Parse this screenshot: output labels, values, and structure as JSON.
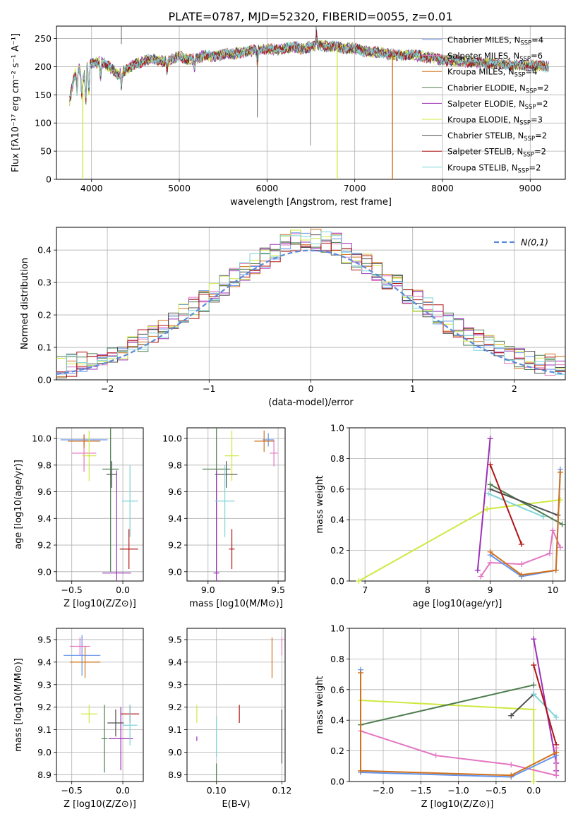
{
  "figure": {
    "title": "PLATE=0787, MJD=52320, FIBERID=0055, z=0.01"
  },
  "colors": {
    "Chabrier MILES": "#6495ed",
    "Salpeter MILES": "#e377c2",
    "Kroupa MILES": "#d0711b",
    "Chabrier ELODIE": "#4e7d4e",
    "Salpeter ELODIE": "#9b30b8",
    "Kroupa ELODIE": "#cfe840",
    "Chabrier STELIB": "#505050",
    "Salpeter STELIB": "#b01414",
    "Kroupa STELIB": "#7fd3d8"
  },
  "chart_data": [
    {
      "id": "spectrum",
      "type": "line",
      "title": "PLATE=0787, MJD=52320, FIBERID=0055, z=0.01",
      "xlabel": "wavelength [Angstrom, rest frame]",
      "ylabel": "Flux [f_λ 10^-17 erg cm^-2 s^-1 A^-1]",
      "xlim": [
        3600,
        9400
      ],
      "ylim": [
        0,
        272
      ],
      "xticks": [
        4000,
        5000,
        6000,
        7000,
        8000,
        9000
      ],
      "yticks": [
        0,
        50,
        100,
        150,
        200,
        250
      ],
      "legend_position": "top-right",
      "legend": [
        {
          "name": "Chabrier MILES",
          "nssp": "4"
        },
        {
          "name": "Salpeter MILES",
          "nssp": "6"
        },
        {
          "name": "Kroupa MILES",
          "nssp": "4"
        },
        {
          "name": "Chabrier ELODIE",
          "nssp": "2"
        },
        {
          "name": "Salpeter ELODIE",
          "nssp": "2"
        },
        {
          "name": "Kroupa ELODIE",
          "nssp": "3"
        },
        {
          "name": "Chabrier STELIB",
          "nssp": "2"
        },
        {
          "name": "Salpeter STELIB",
          "nssp": "2"
        },
        {
          "name": "Kroupa STELIB",
          "nssp": "2"
        }
      ],
      "continuum": [
        [
          3750,
          140
        ],
        [
          3800,
          180
        ],
        [
          3850,
          200
        ],
        [
          3900,
          175
        ],
        [
          3950,
          200
        ],
        [
          4000,
          205
        ],
        [
          4100,
          210
        ],
        [
          4200,
          200
        ],
        [
          4300,
          185
        ],
        [
          4400,
          195
        ],
        [
          4500,
          205
        ],
        [
          4600,
          210
        ],
        [
          4700,
          213
        ],
        [
          4800,
          210
        ],
        [
          4900,
          212
        ],
        [
          5000,
          220
        ],
        [
          5100,
          212
        ],
        [
          5200,
          215
        ],
        [
          5300,
          220
        ],
        [
          5400,
          218
        ],
        [
          5500,
          222
        ],
        [
          5600,
          222
        ],
        [
          5700,
          225
        ],
        [
          5800,
          228
        ],
        [
          5900,
          230
        ],
        [
          6000,
          232
        ],
        [
          6100,
          230
        ],
        [
          6200,
          232
        ],
        [
          6300,
          235
        ],
        [
          6400,
          232
        ],
        [
          6500,
          236
        ],
        [
          6600,
          238
        ],
        [
          6700,
          237
        ],
        [
          6800,
          235
        ],
        [
          6900,
          233
        ],
        [
          7000,
          232
        ],
        [
          7100,
          228
        ],
        [
          7200,
          226
        ],
        [
          7300,
          225
        ],
        [
          7400,
          222
        ],
        [
          7500,
          220
        ],
        [
          7600,
          222
        ],
        [
          7700,
          220
        ],
        [
          7800,
          217
        ],
        [
          7900,
          215
        ],
        [
          8000,
          212
        ],
        [
          8200,
          210
        ],
        [
          8400,
          207
        ],
        [
          8600,
          205
        ],
        [
          8800,
          203
        ],
        [
          9000,
          202
        ],
        [
          9200,
          200
        ]
      ],
      "drops": [
        {
          "series": "Kroupa ELODIE",
          "x": 3900
        },
        {
          "series": "Kroupa ELODIE",
          "x": 6800
        },
        {
          "series": "Kroupa MILES",
          "x": 7430
        }
      ]
    },
    {
      "id": "residuals",
      "type": "step",
      "xlabel": "(data-model)/error",
      "ylabel": "Normed distribution",
      "xlim": [
        -2.5,
        2.5
      ],
      "ylim": [
        0,
        0.47
      ],
      "xticks": [
        -2,
        -1,
        0,
        1,
        2
      ],
      "yticks": [
        0.0,
        0.1,
        0.2,
        0.3,
        0.4
      ],
      "bin_width": 0.1,
      "gaussian": {
        "name": "N(0,1)",
        "color": "#5a8ad8"
      },
      "legend_position": "top-right"
    },
    {
      "id": "age_vs_Z",
      "type": "errorbar",
      "xlabel": "Z [log10(Z/Z⊙)]",
      "ylabel": "age [log10(age/yr)]",
      "xlim": [
        -0.65,
        0.2
      ],
      "ylim": [
        8.93,
        10.08
      ],
      "xticks": [
        -0.5,
        0.0
      ],
      "xticklabels": [
        "−0.5",
        "0.0"
      ],
      "yticks": [
        9.0,
        9.2,
        9.4,
        9.6,
        9.8,
        10.0
      ],
      "points": [
        {
          "series": "Chabrier MILES",
          "x": -0.38,
          "y": 9.99,
          "xerr": 0.23,
          "yerr": 0.04
        },
        {
          "series": "Salpeter MILES",
          "x": -0.38,
          "y": 9.89,
          "xerr": 0.12,
          "yerr": 0.14
        },
        {
          "series": "Kroupa MILES",
          "x": -0.38,
          "y": 9.98,
          "xerr": 0.16,
          "yerr": 0.05
        },
        {
          "series": "Chabrier ELODIE",
          "x": -0.12,
          "y": 9.77,
          "xerr": 0.08,
          "yerr": 0.77
        },
        {
          "series": "Salpeter ELODIE",
          "x": -0.06,
          "y": 8.99,
          "xerr": 0.14,
          "yerr": 0.77
        },
        {
          "series": "Kroupa ELODIE",
          "x": -0.33,
          "y": 9.87,
          "xerr": 0.07,
          "yerr": 0.19
        },
        {
          "series": "Chabrier STELIB",
          "x": -0.11,
          "y": 9.73,
          "xerr": 0.05,
          "yerr": 0.1
        },
        {
          "series": "Salpeter STELIB",
          "x": 0.06,
          "y": 9.17,
          "xerr": 0.09,
          "yerr": 0.15
        },
        {
          "series": "Kroupa STELIB",
          "x": 0.07,
          "y": 9.53,
          "xerr": 0.08,
          "yerr": 0.27
        }
      ]
    },
    {
      "id": "age_vs_mass",
      "type": "errorbar",
      "xlabel": "mass [log10(M/M⊙)]",
      "xlim": [
        8.85,
        9.55
      ],
      "ylim": [
        8.93,
        10.08
      ],
      "xticks": [
        9.0,
        9.5
      ],
      "xticklabels": [
        "9.0",
        "9.5"
      ],
      "yticks": [
        9.0,
        9.2,
        9.4,
        9.6,
        9.8,
        10.0
      ],
      "points": [
        {
          "series": "Chabrier MILES",
          "x": 9.43,
          "y": 9.99,
          "xerr": 0.04,
          "yerr": 0.05
        },
        {
          "series": "Salpeter MILES",
          "x": 9.47,
          "y": 9.89,
          "xerr": 0.03,
          "yerr": 0.1
        },
        {
          "series": "Kroupa MILES",
          "x": 9.4,
          "y": 9.98,
          "xerr": 0.07,
          "yerr": 0.08
        },
        {
          "series": "Chabrier ELODIE",
          "x": 9.06,
          "y": 9.77,
          "xerr": 0.1,
          "yerr": 0.77
        },
        {
          "series": "Salpeter ELODIE",
          "x": 9.06,
          "y": 8.99,
          "xerr": 0.02,
          "yerr": 0.77
        },
        {
          "series": "Kroupa ELODIE",
          "x": 9.17,
          "y": 9.87,
          "xerr": 0.05,
          "yerr": 0.19
        },
        {
          "series": "Chabrier STELIB",
          "x": 9.13,
          "y": 9.73,
          "xerr": 0.08,
          "yerr": 0.1
        },
        {
          "series": "Salpeter STELIB",
          "x": 9.17,
          "y": 9.17,
          "xerr": 0.02,
          "yerr": 0.15
        },
        {
          "series": "Kroupa STELIB",
          "x": 9.12,
          "y": 9.53,
          "xerr": 0.07,
          "yerr": 0.27
        }
      ]
    },
    {
      "id": "weight_vs_age",
      "type": "line",
      "xlabel": "age [log10(age/yr)]",
      "ylabel": "mass weight",
      "xlim": [
        6.75,
        10.2
      ],
      "ylim": [
        0,
        1.0
      ],
      "xticks": [
        7,
        8,
        9,
        10
      ],
      "yticks": [
        0.0,
        0.2,
        0.4,
        0.6,
        0.8,
        1.0
      ],
      "series": [
        {
          "name": "Kroupa ELODIE",
          "points": [
            [
              6.9,
              0.0
            ],
            [
              8.95,
              0.47
            ],
            [
              10.12,
              0.53
            ]
          ]
        },
        {
          "name": "Kroupa STELIB",
          "points": [
            [
              8.97,
              0.57
            ],
            [
              9.85,
              0.42
            ]
          ]
        },
        {
          "name": "Chabrier ELODIE",
          "points": [
            [
              9.0,
              0.63
            ],
            [
              10.15,
              0.37
            ]
          ]
        },
        {
          "name": "Chabrier STELIB",
          "points": [
            [
              9.0,
              0.6
            ],
            [
              10.08,
              0.43
            ]
          ]
        },
        {
          "name": "Salpeter STELIB",
          "points": [
            [
              9.0,
              0.76
            ],
            [
              9.5,
              0.24
            ]
          ]
        },
        {
          "name": "Salpeter ELODIE",
          "points": [
            [
              8.8,
              0.07
            ],
            [
              9.0,
              0.93
            ]
          ]
        },
        {
          "name": "Salpeter MILES",
          "points": [
            [
              8.85,
              0.03
            ],
            [
              9.0,
              0.12
            ],
            [
              9.5,
              0.11
            ],
            [
              9.95,
              0.18
            ],
            [
              10.0,
              0.33
            ],
            [
              10.12,
              0.22
            ]
          ]
        },
        {
          "name": "Chabrier MILES",
          "points": [
            [
              9.0,
              0.17
            ],
            [
              9.5,
              0.03
            ],
            [
              10.05,
              0.07
            ],
            [
              10.12,
              0.73
            ]
          ]
        },
        {
          "name": "Kroupa MILES",
          "points": [
            [
              9.0,
              0.19
            ],
            [
              9.5,
              0.04
            ],
            [
              10.05,
              0.07
            ],
            [
              10.12,
              0.71
            ]
          ]
        }
      ]
    },
    {
      "id": "mass_vs_Z",
      "type": "errorbar",
      "xlabel": "Z [log10(Z/Z⊙)]",
      "ylabel": "mass [log10(M/M⊙)]",
      "xlim": [
        -0.65,
        0.2
      ],
      "ylim": [
        8.87,
        9.55
      ],
      "xticks": [
        -0.5,
        0.0
      ],
      "xticklabels": [
        "−0.5",
        "0.0"
      ],
      "yticks": [
        8.9,
        9.0,
        9.1,
        9.2,
        9.3,
        9.4,
        9.5
      ],
      "points": [
        {
          "series": "Chabrier MILES",
          "x": -0.4,
          "y": 9.43,
          "xerr": 0.18,
          "yerr": 0.09
        },
        {
          "series": "Salpeter MILES",
          "x": -0.42,
          "y": 9.47,
          "xerr": 0.1,
          "yerr": 0.04
        },
        {
          "series": "Kroupa MILES",
          "x": -0.37,
          "y": 9.4,
          "xerr": 0.15,
          "yerr": 0.07
        },
        {
          "series": "Chabrier ELODIE",
          "x": -0.18,
          "y": 9.06,
          "xerr": 0.03,
          "yerr": 0.15
        },
        {
          "series": "Salpeter ELODIE",
          "x": -0.02,
          "y": 9.06,
          "xerr": 0.12,
          "yerr": 0.14
        },
        {
          "series": "Kroupa ELODIE",
          "x": -0.33,
          "y": 9.17,
          "xerr": 0.08,
          "yerr": 0.04
        },
        {
          "series": "Chabrier STELIB",
          "x": -0.07,
          "y": 9.13,
          "xerr": 0.08,
          "yerr": 0.06
        },
        {
          "series": "Salpeter STELIB",
          "x": 0.07,
          "y": 9.17,
          "xerr": 0.09,
          "yerr": 0.04
        },
        {
          "series": "Kroupa STELIB",
          "x": 0.07,
          "y": 9.12,
          "xerr": 0.07,
          "yerr": 0.09
        }
      ]
    },
    {
      "id": "mass_vs_ebv",
      "type": "errorbar",
      "xlabel": "E(B-V)",
      "xlim": [
        0.091,
        0.121
      ],
      "ylim": [
        8.87,
        9.55
      ],
      "xticks": [
        0.1,
        0.12
      ],
      "xticklabels": [
        "0.10",
        "0.12"
      ],
      "yticks": [
        8.9,
        9.0,
        9.1,
        9.2,
        9.3,
        9.4,
        9.5
      ],
      "points": [
        {
          "series": "Salpeter ELODIE",
          "x": 0.094,
          "y": 9.06,
          "xerr": 0,
          "yerr": 0.01
        },
        {
          "series": "Kroupa ELODIE",
          "x": 0.094,
          "y": 9.17,
          "xerr": 0,
          "yerr": 0.04
        },
        {
          "series": "Chabrier ELODIE",
          "x": 0.1,
          "y": 8.9,
          "xerr": 0,
          "yerr": 0.05
        },
        {
          "series": "Kroupa STELIB",
          "x": 0.1,
          "y": 9.07,
          "xerr": 0,
          "yerr": 0.09
        },
        {
          "series": "Salpeter STELIB",
          "x": 0.107,
          "y": 9.17,
          "xerr": 0,
          "yerr": 0.04
        },
        {
          "series": "Kroupa MILES",
          "x": 0.117,
          "y": 9.42,
          "xerr": 0,
          "yerr": 0.09
        },
        {
          "series": "Salpeter MILES",
          "x": 0.12,
          "y": 9.47,
          "xerr": 0,
          "yerr": 0.04
        },
        {
          "series": "Chabrier STELIB",
          "x": 0.12,
          "y": 9.07,
          "xerr": 0,
          "yerr": 0.12
        }
      ]
    },
    {
      "id": "weight_vs_Z",
      "type": "line",
      "xlabel": "Z [log10(Z/Z⊙)]",
      "ylabel": "mass weight",
      "xlim": [
        -2.45,
        0.42
      ],
      "ylim": [
        0,
        1.0
      ],
      "xticks": [
        -2.0,
        -1.5,
        -1.0,
        -0.5,
        0.0
      ],
      "xticklabels": [
        "−2.0",
        "−1.5",
        "−1.0",
        "−0.5",
        "0.0"
      ],
      "yticks": [
        0.0,
        0.2,
        0.4,
        0.6,
        0.8,
        1.0
      ],
      "series": [
        {
          "name": "Kroupa ELODIE",
          "points": [
            [
              -2.3,
              0.53
            ],
            [
              0.0,
              0.47
            ],
            [
              0.0,
              0.0
            ]
          ]
        },
        {
          "name": "Chabrier ELODIE",
          "points": [
            [
              -2.3,
              0.37
            ],
            [
              0.0,
              0.63
            ]
          ]
        },
        {
          "name": "Chabrier STELIB",
          "points": [
            [
              -0.3,
              0.43
            ],
            [
              0.0,
              0.57
            ]
          ]
        },
        {
          "name": "Kroupa STELIB",
          "points": [
            [
              0.0,
              0.57
            ],
            [
              0.3,
              0.42
            ]
          ]
        },
        {
          "name": "Salpeter ELODIE",
          "points": [
            [
              0.0,
              0.93
            ],
            [
              0.3,
              0.12
            ],
            [
              0.3,
              0.07
            ]
          ]
        },
        {
          "name": "Salpeter STELIB",
          "points": [
            [
              0.0,
              0.76
            ],
            [
              0.3,
              0.24
            ]
          ]
        },
        {
          "name": "Salpeter MILES",
          "points": [
            [
              -2.3,
              0.33
            ],
            [
              -1.3,
              0.17
            ],
            [
              -0.3,
              0.11
            ],
            [
              0.3,
              0.04
            ],
            [
              0.3,
              0.22
            ]
          ]
        },
        {
          "name": "Chabrier MILES",
          "points": [
            [
              -2.3,
              0.73
            ],
            [
              -2.3,
              0.06
            ],
            [
              -0.3,
              0.03
            ],
            [
              0.3,
              0.17
            ]
          ]
        },
        {
          "name": "Kroupa MILES",
          "points": [
            [
              -2.3,
              0.71
            ],
            [
              -2.3,
              0.07
            ],
            [
              -0.3,
              0.04
            ],
            [
              0.3,
              0.19
            ]
          ]
        }
      ]
    }
  ]
}
